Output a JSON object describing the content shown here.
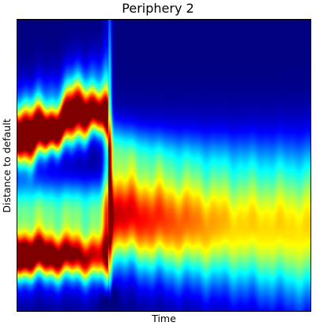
{
  "chart_data": {
    "type": "heatmap",
    "title": "Periphery 2",
    "xlabel": "Time",
    "ylabel": "Distance to default",
    "colormap": "jet",
    "colormap_low": "#00007f",
    "colormap_high": "#7f0000",
    "x_ticks": [],
    "y_ticks": [],
    "grid": false,
    "legend": "none",
    "bands": [
      {
        "phase": "before-drop",
        "t_range": [
          0.0,
          0.31
        ],
        "center_start": 0.4,
        "center_end": 0.38,
        "center_peak_t": 0.2,
        "center_peak_shift": -0.07,
        "intensity": [
          1.0,
          0.75
        ]
      },
      {
        "phase": "before-drop",
        "t_range": [
          0.0,
          0.31
        ],
        "center_start": 0.81,
        "center_end": 0.82,
        "intensity": [
          0.95,
          0.45
        ]
      },
      {
        "phase": "after-drop",
        "t_range": [
          0.31,
          1.0
        ],
        "center_start": 0.65,
        "center_end": 0.75,
        "intensity": [
          0.8,
          0.55
        ]
      }
    ],
    "transition_t": 0.31
  }
}
